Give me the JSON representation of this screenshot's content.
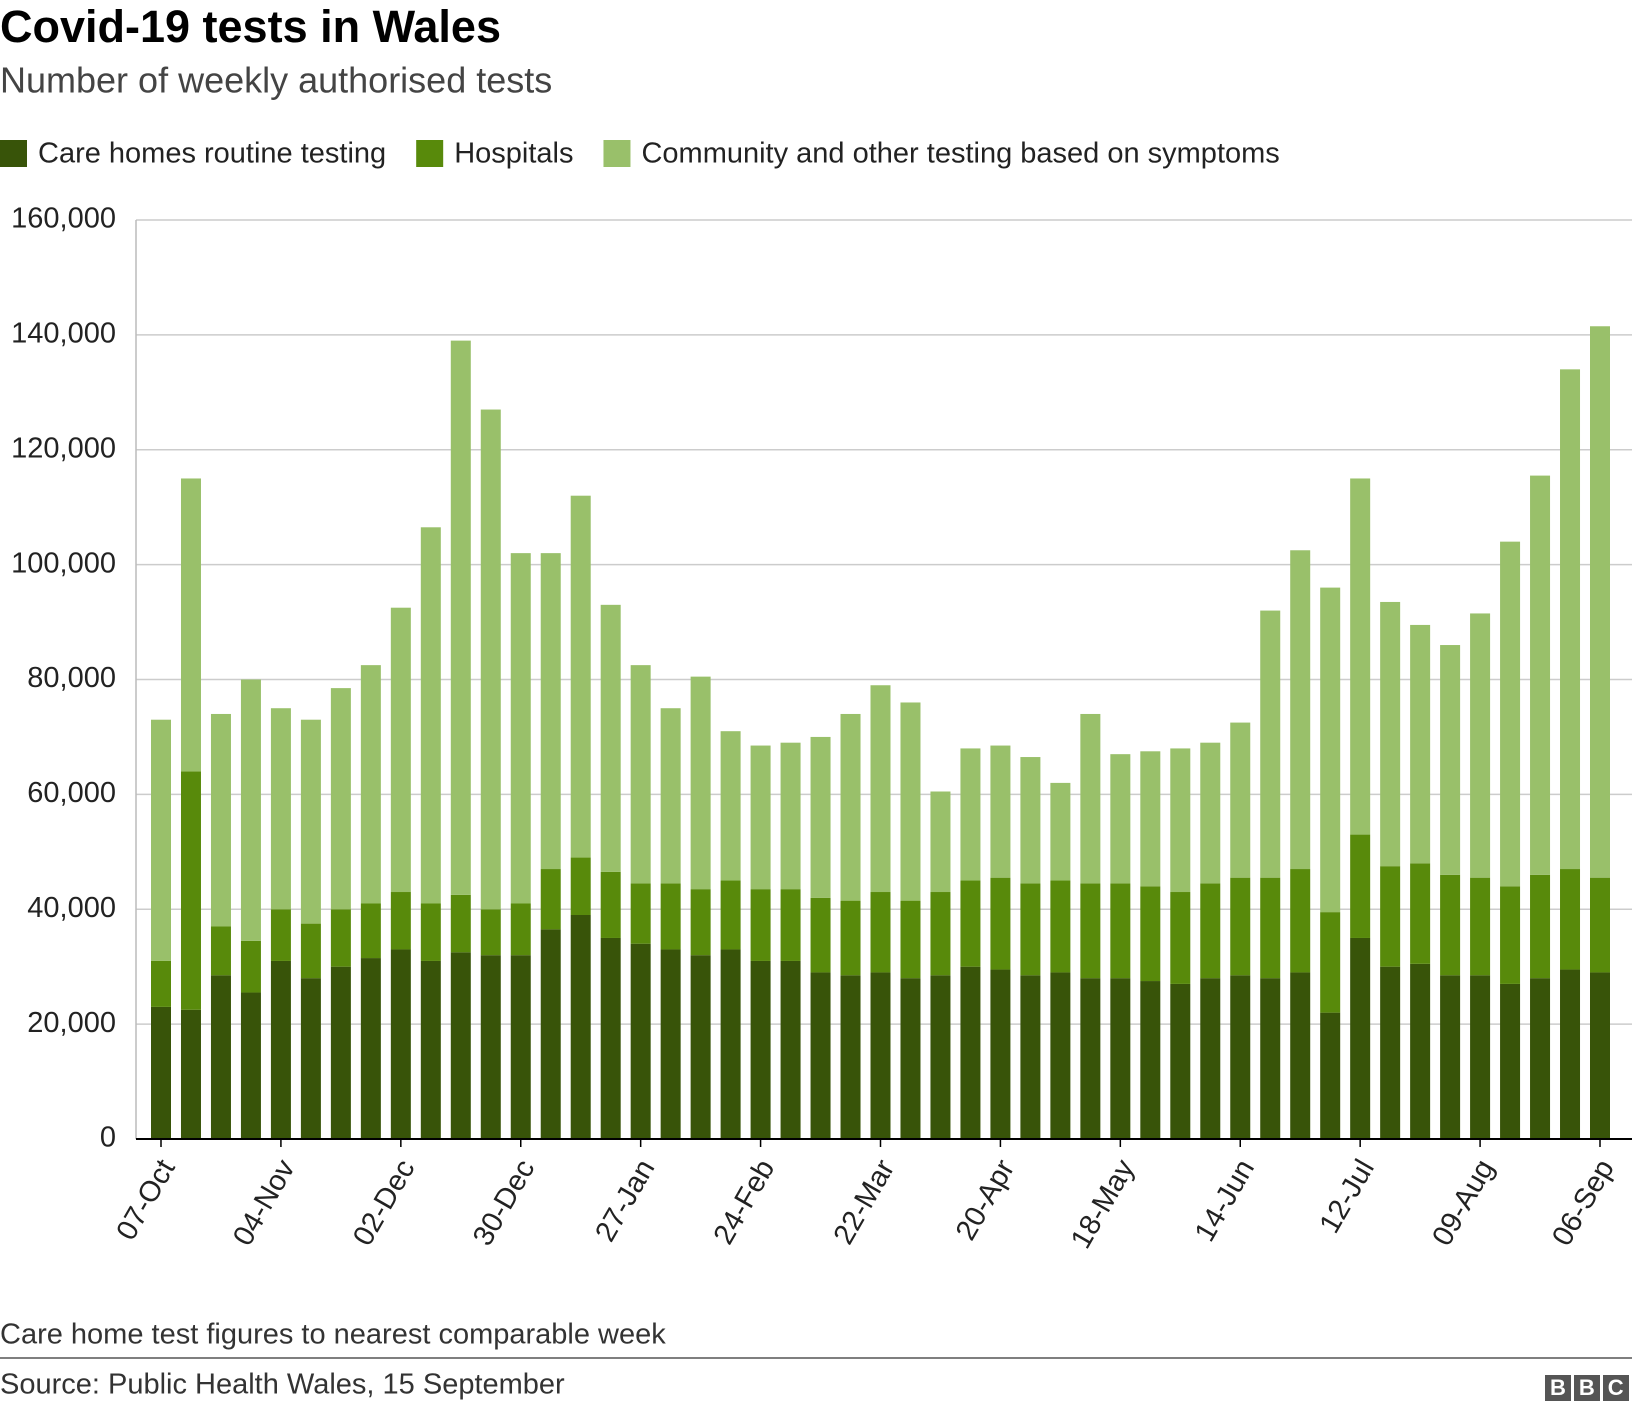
{
  "chart_data": {
    "type": "stacked_bar",
    "title": "Covid-19 tests in Wales",
    "subtitle": "Number of weekly authorised tests",
    "note": "Care home test figures to nearest comparable week",
    "source": "Source: Public Health Wales, 15 September",
    "logo": "BBC",
    "categories": [
      "07-Oct",
      null,
      null,
      null,
      "04-Nov",
      null,
      null,
      null,
      "02-Dec",
      null,
      null,
      null,
      "30-Dec",
      null,
      null,
      null,
      "27-Jan",
      null,
      null,
      null,
      "24-Feb",
      null,
      null,
      null,
      "22-Mar",
      null,
      null,
      null,
      "20-Apr",
      null,
      null,
      null,
      "18-May",
      null,
      null,
      null,
      "14-Jun",
      null,
      null,
      null,
      "12-Jul",
      null,
      null,
      null,
      "09-Aug",
      null,
      null,
      null,
      "06-Sep"
    ],
    "series": [
      {
        "name": "Care homes routine testing",
        "color": "#385409",
        "values": [
          23000,
          22500,
          28500,
          25500,
          31000,
          28000,
          30000,
          31500,
          33000,
          31000,
          32500,
          32000,
          32000,
          36500,
          39000,
          35000,
          34000,
          33000,
          32000,
          33000,
          31000,
          31000,
          29000,
          28500,
          29000,
          28000,
          28500,
          30000,
          29500,
          28500,
          29000,
          28000,
          28000,
          27500,
          27000,
          28000,
          28500,
          28000,
          29000,
          22000,
          35000,
          30000,
          30500,
          28500,
          28500,
          27000,
          28000,
          29500,
          29000
        ]
      },
      {
        "name": "Hospitals",
        "color": "#588a0b",
        "values": [
          8000,
          41500,
          8500,
          9000,
          9000,
          9500,
          10000,
          9500,
          10000,
          10000,
          10000,
          8000,
          9000,
          10500,
          10000,
          11500,
          10500,
          11500,
          11500,
          12000,
          12500,
          12500,
          13000,
          13000,
          14000,
          13500,
          14500,
          15000,
          16000,
          16000,
          16000,
          16500,
          16500,
          16500,
          16000,
          16500,
          17000,
          17500,
          18000,
          17500,
          18000,
          17500,
          17500,
          17500,
          17000,
          17000,
          18000,
          17500,
          16500
        ]
      },
      {
        "name": "Community and other testing based on symptoms",
        "color": "#99c06a",
        "values": [
          42000,
          51000,
          37000,
          45500,
          35000,
          35500,
          38500,
          41500,
          49500,
          65500,
          96500,
          87000,
          61000,
          55000,
          63000,
          46500,
          38000,
          30500,
          37000,
          26000,
          25000,
          25500,
          28000,
          32500,
          36000,
          34500,
          17500,
          23000,
          23000,
          22000,
          17000,
          29500,
          22500,
          23500,
          25000,
          24500,
          27000,
          46500,
          55500,
          56500,
          62000,
          46000,
          41500,
          40000,
          46000,
          60000,
          69500,
          87000,
          96000
        ]
      }
    ],
    "ylim": [
      0,
      160000
    ],
    "yticks": [
      0,
      {
        "value": 20000,
        "label": "20,000"
      },
      {
        "value": 40000,
        "label": "40,000"
      },
      {
        "value": 60000,
        "label": "60,000"
      },
      {
        "value": 80000,
        "label": "80,000"
      },
      {
        "value": 100000,
        "label": "100,000"
      },
      {
        "value": 120000,
        "label": "120,000"
      },
      {
        "value": 140000,
        "label": "140,000"
      },
      {
        "value": 160000,
        "label": "160,000"
      }
    ],
    "grid": true
  }
}
